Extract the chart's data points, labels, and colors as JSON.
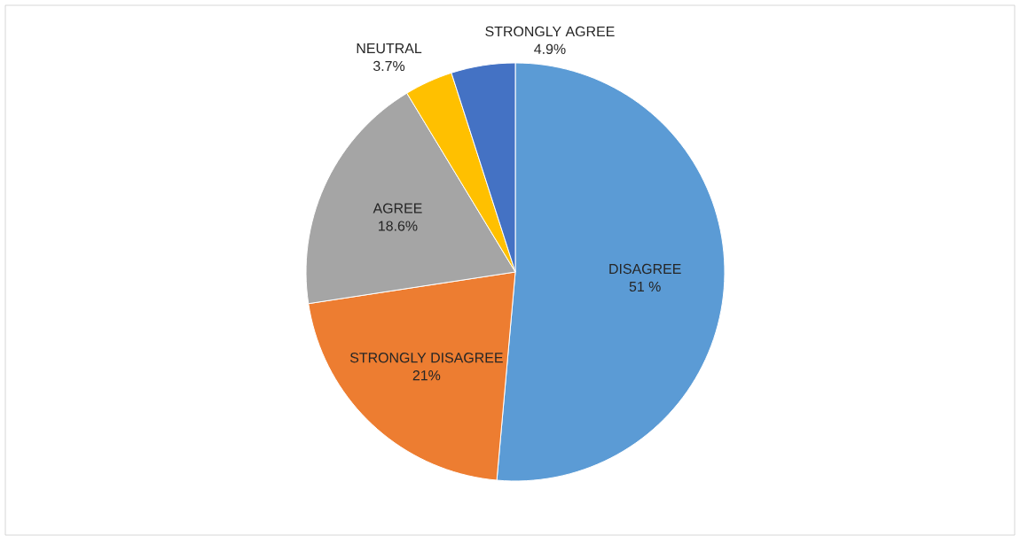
{
  "chart_data": {
    "type": "pie",
    "categories": [
      "DISAGREE",
      "STRONGLY DISAGREE",
      "AGREE",
      "NEUTRAL",
      "STRONGLY AGREE"
    ],
    "values": [
      51,
      21,
      18.6,
      3.7,
      4.9
    ],
    "value_labels": [
      "51 %",
      "21%",
      "18.6%",
      "3.7%",
      "4.9%"
    ],
    "colors": [
      "#5b9bd5",
      "#ed7d31",
      "#a5a5a5",
      "#ffc000",
      "#4472c4"
    ]
  }
}
